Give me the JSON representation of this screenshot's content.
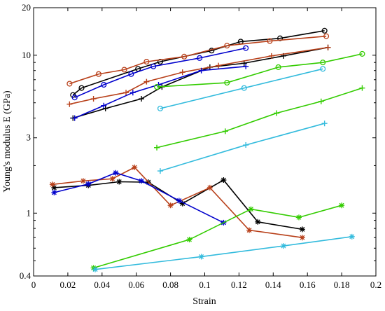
{
  "chart_data": {
    "type": "line",
    "title": "",
    "xlabel": "Strain",
    "ylabel": "Young's modulus E (GPa)",
    "xlim": [
      0,
      0.2
    ],
    "ylim": [
      0.4,
      20
    ],
    "yscale": "log",
    "grid": false,
    "xticks": [
      0,
      0.02,
      0.04,
      0.06,
      0.08,
      0.1,
      0.12,
      0.14,
      0.16,
      0.18,
      0.2
    ],
    "xtick_labels": [
      "0",
      "0.02",
      "0.04",
      "0.06",
      "0.08",
      "0.1",
      "0.12",
      "0.14",
      "0.16",
      "0.18",
      "0.2"
    ],
    "yticks": [
      0.4,
      1,
      3,
      10,
      20
    ],
    "ytick_labels": [
      "0.4",
      "1",
      "3",
      "10",
      "20"
    ],
    "series": [
      {
        "color": "#000000",
        "marker": "circle",
        "x": [
          0.023,
          0.028,
          0.061,
          0.074,
          0.104,
          0.121,
          0.144,
          0.17
        ],
        "y": [
          5.6,
          6.2,
          8.2,
          9.1,
          10.7,
          12.2,
          12.8,
          14.3
        ]
      },
      {
        "color": "#b8401a",
        "marker": "circle",
        "x": [
          0.021,
          0.038,
          0.053,
          0.066,
          0.088,
          0.113,
          0.138,
          0.171
        ],
        "y": [
          6.6,
          7.6,
          8.1,
          9.1,
          9.8,
          11.5,
          12.3,
          13.2
        ]
      },
      {
        "color": "#0000cc",
        "marker": "circle",
        "x": [
          0.024,
          0.041,
          0.057,
          0.07,
          0.097,
          0.124
        ],
        "y": [
          5.4,
          6.5,
          7.6,
          8.5,
          9.6,
          11.1
        ]
      },
      {
        "color": "#000000",
        "marker": "plus",
        "x": [
          0.023,
          0.042,
          0.063,
          0.075,
          0.103,
          0.123,
          0.146,
          0.172
        ],
        "y": [
          4.0,
          4.6,
          5.3,
          6.3,
          8.4,
          8.9,
          9.9,
          11.2
        ]
      },
      {
        "color": "#b8401a",
        "marker": "plus",
        "x": [
          0.021,
          0.035,
          0.054,
          0.066,
          0.087,
          0.108,
          0.139,
          0.172
        ],
        "y": [
          4.9,
          5.3,
          5.8,
          6.8,
          7.8,
          8.6,
          9.9,
          11.2
        ]
      },
      {
        "color": "#0000cc",
        "marker": "plus",
        "x": [
          0.024,
          0.041,
          0.058,
          0.073,
          0.098,
          0.124
        ],
        "y": [
          4.0,
          4.8,
          5.8,
          6.5,
          8.0,
          8.5
        ]
      },
      {
        "color": "#33cc00",
        "marker": "circle",
        "x": [
          0.072,
          0.113,
          0.143,
          0.169,
          0.192
        ],
        "y": [
          6.3,
          6.7,
          8.4,
          9.0,
          10.2
        ]
      },
      {
        "color": "#33cc00",
        "marker": "plus",
        "x": [
          0.072,
          0.112,
          0.142,
          0.168,
          0.192
        ],
        "y": [
          2.6,
          3.3,
          4.3,
          5.1,
          6.2
        ]
      },
      {
        "color": "#33bbdd",
        "marker": "circle",
        "x": [
          0.074,
          0.123,
          0.169
        ],
        "y": [
          4.6,
          6.2,
          8.2
        ]
      },
      {
        "color": "#33bbdd",
        "marker": "plus",
        "x": [
          0.074,
          0.124,
          0.17
        ],
        "y": [
          1.85,
          2.7,
          3.7
        ]
      },
      {
        "color": "#000000",
        "marker": "asterisk",
        "x": [
          0.012,
          0.032,
          0.05,
          0.067,
          0.087,
          0.111,
          0.131,
          0.157
        ],
        "y": [
          1.45,
          1.5,
          1.58,
          1.57,
          1.15,
          1.62,
          0.88,
          0.79
        ]
      },
      {
        "color": "#b8401a",
        "marker": "asterisk",
        "x": [
          0.011,
          0.029,
          0.046,
          0.059,
          0.08,
          0.103,
          0.126,
          0.157
        ],
        "y": [
          1.52,
          1.6,
          1.65,
          1.95,
          1.12,
          1.45,
          0.78,
          0.7
        ]
      },
      {
        "color": "#0000cc",
        "marker": "asterisk",
        "x": [
          0.012,
          0.032,
          0.048,
          0.063,
          0.085,
          0.111
        ],
        "y": [
          1.35,
          1.53,
          1.8,
          1.6,
          1.2,
          0.87
        ]
      },
      {
        "color": "#33cc00",
        "marker": "asterisk",
        "x": [
          0.035,
          0.091,
          0.127,
          0.155,
          0.18
        ],
        "y": [
          0.45,
          0.68,
          1.06,
          0.94,
          1.12
        ]
      },
      {
        "color": "#33bbdd",
        "marker": "asterisk",
        "x": [
          0.036,
          0.098,
          0.146,
          0.186
        ],
        "y": [
          0.44,
          0.53,
          0.62,
          0.71
        ]
      }
    ]
  }
}
